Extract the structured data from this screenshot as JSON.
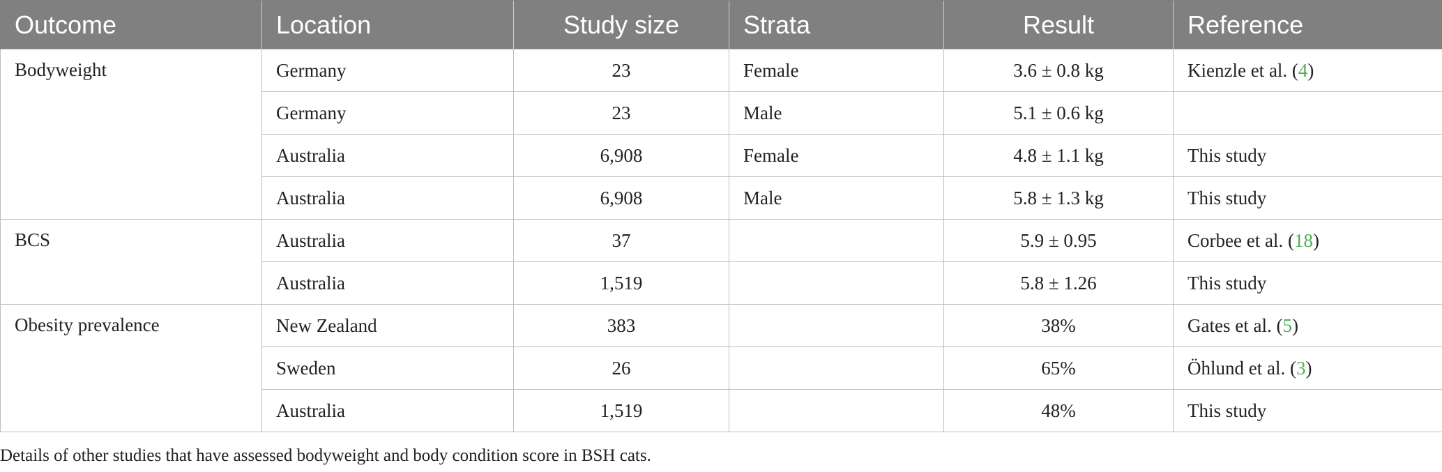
{
  "headers": [
    "Outcome",
    "Location",
    "Study size",
    "Strata",
    "Result",
    "Reference"
  ],
  "groups": [
    {
      "outcome": "Bodyweight",
      "rows": [
        {
          "location": "Germany",
          "size": "23",
          "strata": "Female",
          "result": "3.6 ± 0.8 kg",
          "ref_text": "Kienzle et al. (",
          "ref_num": "4",
          "ref_close": ")"
        },
        {
          "location": "Germany",
          "size": "23",
          "strata": "Male",
          "result": "5.1 ± 0.6 kg",
          "ref_text": "",
          "ref_num": "",
          "ref_close": ""
        },
        {
          "location": "Australia",
          "size": "6,908",
          "strata": "Female",
          "result": "4.8 ± 1.1 kg",
          "ref_text": "This study",
          "ref_num": "",
          "ref_close": ""
        },
        {
          "location": "Australia",
          "size": "6,908",
          "strata": "Male",
          "result": "5.8 ± 1.3 kg",
          "ref_text": "This study",
          "ref_num": "",
          "ref_close": ""
        }
      ]
    },
    {
      "outcome": "BCS",
      "rows": [
        {
          "location": "Australia",
          "size": "37",
          "strata": "",
          "result": "5.9 ± 0.95",
          "ref_text": "Corbee et al. (",
          "ref_num": "18",
          "ref_close": ")"
        },
        {
          "location": "Australia",
          "size": "1,519",
          "strata": "",
          "result": "5.8 ± 1.26",
          "ref_text": "This study",
          "ref_num": "",
          "ref_close": ""
        }
      ]
    },
    {
      "outcome": "Obesity prevalence",
      "rows": [
        {
          "location": "New Zealand",
          "size": "383",
          "strata": "",
          "result": "38%",
          "ref_text": "Gates et al. (",
          "ref_num": "5",
          "ref_close": ")"
        },
        {
          "location": "Sweden",
          "size": "26",
          "strata": "",
          "result": "65%",
          "ref_text": "Öhlund et al. (",
          "ref_num": "3",
          "ref_close": ")"
        },
        {
          "location": "Australia",
          "size": "1,519",
          "strata": "",
          "result": "48%",
          "ref_text": "This study",
          "ref_num": "",
          "ref_close": ""
        }
      ]
    }
  ],
  "caption": "Details of other studies that have assessed bodyweight and body condition score in BSH cats.",
  "colors": {
    "header_bg": "#808080",
    "header_text": "#ffffff",
    "link": "#4caf50",
    "border": "#bdbdbd"
  }
}
